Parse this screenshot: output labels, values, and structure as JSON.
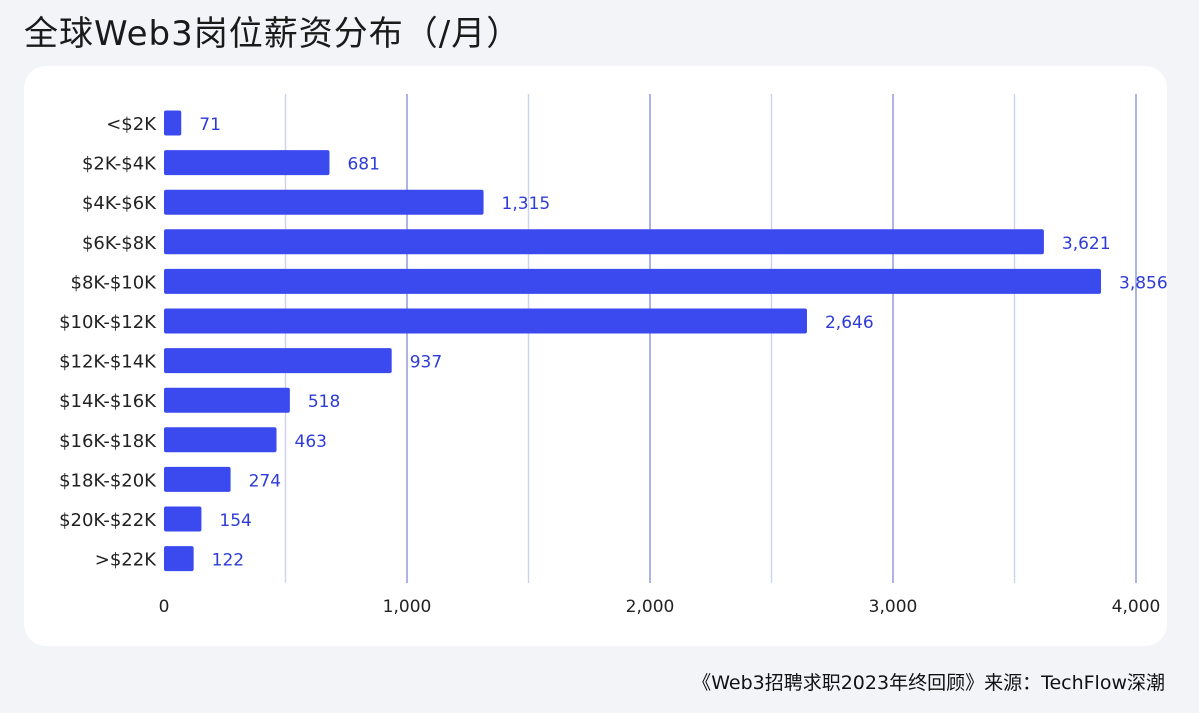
{
  "page": {
    "title": "全球Web3岗位薪资分布（/月）",
    "source": "《Web3招聘求职2023年终回顾》来源：TechFlow深潮"
  },
  "colors": {
    "bar": "#3b4aef",
    "value_label": "#2d3bd8",
    "grid_major": "#8a93d8",
    "grid_minor": "#cdd2ef",
    "background": "#f3f4f8",
    "card": "#ffffff"
  },
  "chart_data": {
    "type": "bar",
    "orientation": "horizontal",
    "categories": [
      "<$2K",
      "$2K-$4K",
      "$4K-$6K",
      "$6K-$8K",
      "$8K-$10K",
      "$10K-$12K",
      "$12K-$14K",
      "$14K-$16K",
      "$16K-$18K",
      "$18K-$20K",
      "$20K-$22K",
      ">$22K"
    ],
    "values": [
      71,
      681,
      1315,
      3621,
      3856,
      2646,
      937,
      518,
      463,
      274,
      154,
      122
    ],
    "value_labels": [
      "71",
      "681",
      "1,315",
      "3,621",
      "3,856",
      "2,646",
      "937",
      "518",
      "463",
      "274",
      "154",
      "122"
    ],
    "xlim": [
      0,
      4000
    ],
    "x_ticks": [
      0,
      1000,
      2000,
      3000,
      4000
    ],
    "x_tick_labels": [
      "0",
      "1,000",
      "2,000",
      "3,000",
      "4,000"
    ],
    "minor_gridlines": [
      500,
      1500,
      2500,
      3500
    ],
    "grid": true,
    "legend": "none"
  }
}
